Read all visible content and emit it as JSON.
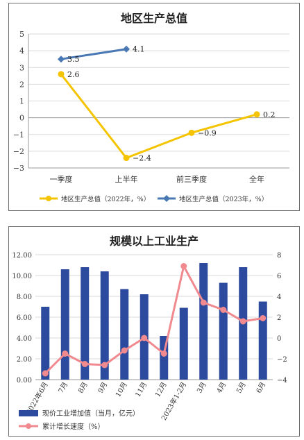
{
  "chart_data": [
    {
      "type": "line",
      "title": "地区生产总值",
      "categories": [
        "一季度",
        "上半年",
        "前三季度",
        "全年"
      ],
      "yticks": [
        5,
        4,
        3,
        2,
        1,
        0,
        -1,
        -2,
        -3
      ],
      "ylim": [
        -3,
        5
      ],
      "grid": true,
      "legend_position": "bottom",
      "series": [
        {
          "name": "地区生产总值（2022年，%）",
          "color": "#f5c400",
          "marker": "circle",
          "values": [
            2.6,
            -2.4,
            -0.9,
            0.2
          ],
          "labels": [
            "2.6",
            "-2.4",
            "-0.9",
            "0.2"
          ]
        },
        {
          "name": "地区生产总值（2023年，%）",
          "color": "#4a78b4",
          "marker": "diamond",
          "values": [
            3.5,
            4.1,
            null,
            null
          ],
          "labels": [
            "3.5",
            "4.1",
            "",
            ""
          ]
        }
      ]
    },
    {
      "type": "bar",
      "title": "规模以上工业生产",
      "categories": [
        "2022年6月",
        "7月",
        "8月",
        "9月",
        "10月",
        "11月",
        "12月",
        "2023年1-2月",
        "3月",
        "4月",
        "5月",
        "6月"
      ],
      "yticks_left": [
        "12.00",
        "10.00",
        "8.00",
        "6.00",
        "4.00",
        "2.00",
        "0.00"
      ],
      "ylim_left": [
        0,
        12
      ],
      "yticks_right": [
        "8",
        "6",
        "4",
        "2",
        "0",
        "-2",
        "-4"
      ],
      "ylim_right": [
        -4,
        8
      ],
      "grid": true,
      "legend_position": "bottom",
      "series": [
        {
          "name": "现价工业增加值（当月，亿元）",
          "type": "bar",
          "axis": "left",
          "color": "#2c4a9e",
          "values": [
            7.0,
            10.6,
            10.8,
            10.4,
            8.7,
            8.2,
            4.2,
            6.9,
            11.2,
            9.3,
            10.8,
            7.5
          ]
        },
        {
          "name": "累计增长速度（%）",
          "type": "line",
          "axis": "right",
          "color": "#f08a8f",
          "values": [
            -3.4,
            -1.5,
            -2.5,
            -2.6,
            -1.2,
            0.0,
            -1.5,
            6.9,
            3.4,
            2.7,
            1.6,
            1.9
          ]
        }
      ]
    }
  ]
}
